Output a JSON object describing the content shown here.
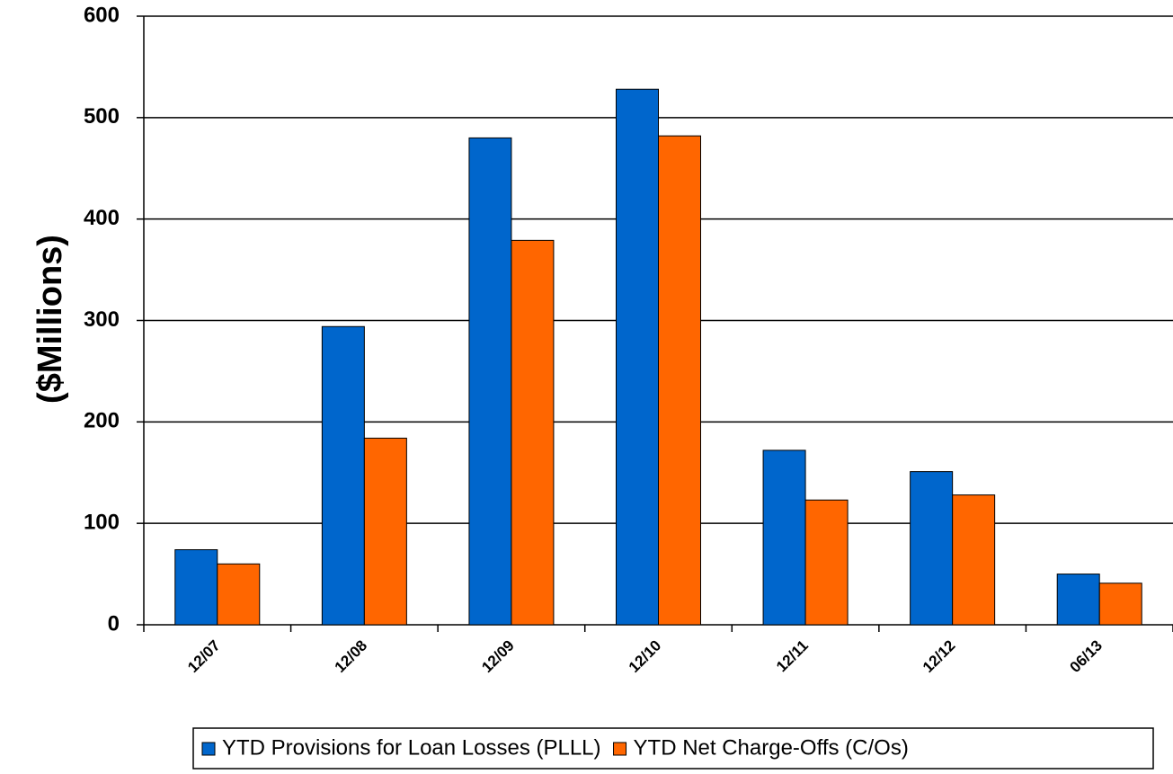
{
  "chart_data": {
    "type": "bar",
    "y_label": "($Millions)",
    "categories": [
      "12/07",
      "12/08",
      "12/09",
      "12/10",
      "12/11",
      "12/12",
      "06/13"
    ],
    "series": [
      {
        "name": "YTD Provisions for Loan Losses (PLLL)",
        "color": "#0066cc",
        "values": [
          74,
          294,
          480,
          528,
          172,
          151,
          50
        ]
      },
      {
        "name": "YTD Net Charge-Offs (C/Os)",
        "color": "#ff6600",
        "values": [
          60,
          184,
          379,
          482,
          123,
          128,
          41
        ]
      }
    ],
    "ylim": [
      0,
      600
    ],
    "yticks": [
      0,
      100,
      200,
      300,
      400,
      500,
      600
    ],
    "grid": true
  }
}
